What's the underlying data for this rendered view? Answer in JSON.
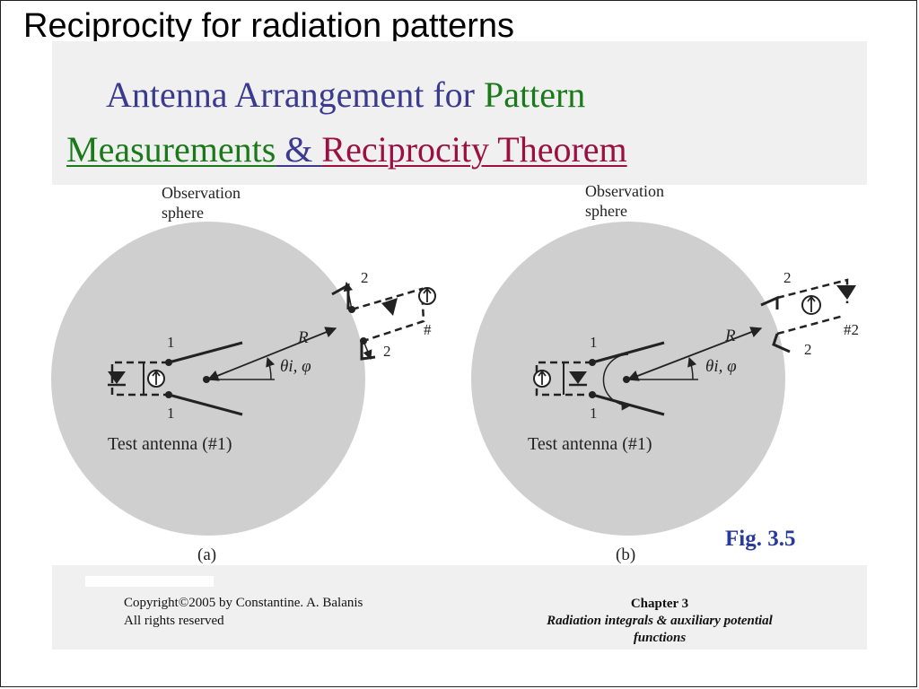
{
  "slide": {
    "title": "Reciprocity for radiation patterns"
  },
  "figure": {
    "title_line1": {
      "part1": "Antenna Arrangement for ",
      "part2": "Pattern"
    },
    "title_line2": {
      "part1": "Measurements",
      "part2": " & ",
      "part3": "Reciprocity Theorem"
    },
    "panel_a": {
      "observation_line1": "Observation",
      "observation_line2": "sphere",
      "terminal_top": "1",
      "terminal_bottom": "1",
      "range_label": "R",
      "angle_label": "θi, φ",
      "probe_terminal_top": "2",
      "probe_terminal_bottom": "2",
      "probe_label": "#",
      "test_antenna_label": "Test antenna (#1)",
      "caption": "(a)"
    },
    "panel_b": {
      "observation_line1": "Observation",
      "observation_line2": "sphere",
      "terminal_top": "1",
      "terminal_bottom": "1",
      "range_label": "R",
      "angle_label": "θi, φ",
      "probe_terminal_top": "2",
      "probe_terminal_bottom": "2",
      "probe_label": "#2",
      "test_antenna_label": "Test antenna (#1)",
      "caption": "(b)"
    },
    "fig_label": "Fig. 3.5",
    "colors": {
      "title_blue": "#3a3a8e",
      "title_green": "#1a7a1a",
      "title_red": "#9a1040",
      "sphere": "#cfcfcf",
      "fig_label": "#2a3a9a"
    }
  },
  "footer": {
    "copyright_line1": "Copyright©2005 by Constantine. A. Balanis",
    "copyright_line2": "All rights reserved",
    "chapter": "Chapter 3",
    "chapter_sub1": "Radiation integrals & auxiliary potential",
    "chapter_sub2": "functions"
  }
}
